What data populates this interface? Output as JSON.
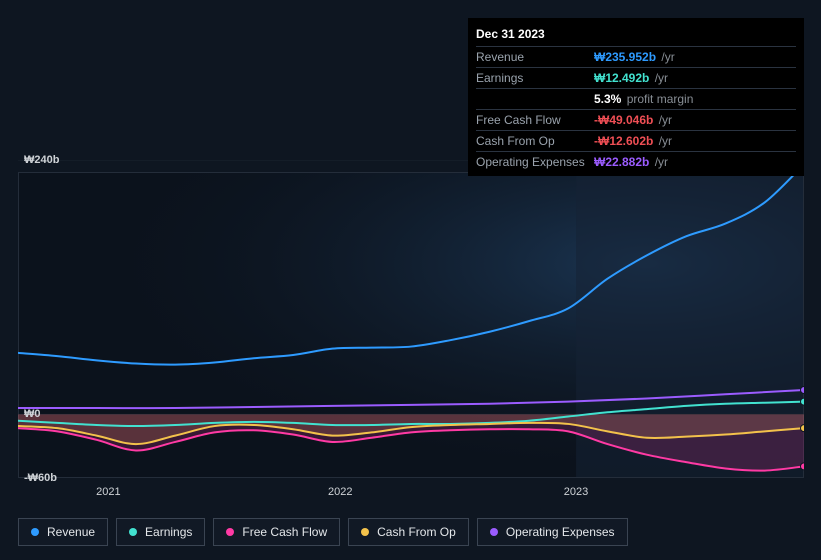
{
  "colors": {
    "revenue": "#2e9bff",
    "earnings": "#42e2d0",
    "fcf": "#ff3aa4",
    "cfo": "#f3c24b",
    "opex": "#9b5cff",
    "background": "#0e1621",
    "tooltip_bg": "#000000",
    "grid": "#1b2430",
    "highlight_band": "#152235",
    "neg_value": "#f04f55"
  },
  "tooltip": {
    "title": "Dec 31 2023",
    "rows": [
      {
        "label": "Revenue",
        "value": "₩235.952b",
        "suffix": "/yr",
        "color_key": "revenue"
      },
      {
        "label": "Earnings",
        "value": "₩12.492b",
        "suffix": "/yr",
        "color_key": "earnings"
      },
      {
        "label": "",
        "value": "5.3%",
        "suffix": "profit margin",
        "color_key": "white"
      },
      {
        "label": "Free Cash Flow",
        "value": "-₩49.046b",
        "suffix": "/yr",
        "color_key": "neg"
      },
      {
        "label": "Cash From Op",
        "value": "-₩12.602b",
        "suffix": "/yr",
        "color_key": "neg"
      },
      {
        "label": "Operating Expenses",
        "value": "₩22.882b",
        "suffix": "/yr",
        "color_key": "opex"
      }
    ]
  },
  "chart": {
    "type": "line",
    "y_min": -60,
    "y_max": 240,
    "y_ticks": [
      {
        "v": 240,
        "label": "₩240b"
      },
      {
        "v": 0,
        "label": "₩0"
      },
      {
        "v": -60,
        "label": "-₩60b"
      }
    ],
    "x_min": 0,
    "x_max": 100,
    "x_ticks": [
      {
        "v": 11.5,
        "label": "2021"
      },
      {
        "v": 41.0,
        "label": "2022"
      },
      {
        "v": 71.0,
        "label": "2023"
      }
    ],
    "highlight_x": 71.0,
    "series": [
      {
        "name": "Revenue",
        "color_key": "revenue",
        "fill": false,
        "width": 2,
        "points": [
          {
            "x": 0,
            "y": 58
          },
          {
            "x": 5,
            "y": 55
          },
          {
            "x": 10,
            "y": 51
          },
          {
            "x": 15,
            "y": 48
          },
          {
            "x": 20,
            "y": 47
          },
          {
            "x": 25,
            "y": 49
          },
          {
            "x": 30,
            "y": 53
          },
          {
            "x": 35,
            "y": 56
          },
          {
            "x": 40,
            "y": 62
          },
          {
            "x": 45,
            "y": 63
          },
          {
            "x": 50,
            "y": 64
          },
          {
            "x": 55,
            "y": 70
          },
          {
            "x": 60,
            "y": 78
          },
          {
            "x": 65,
            "y": 88
          },
          {
            "x": 70,
            "y": 100
          },
          {
            "x": 75,
            "y": 128
          },
          {
            "x": 80,
            "y": 150
          },
          {
            "x": 85,
            "y": 168
          },
          {
            "x": 90,
            "y": 180
          },
          {
            "x": 95,
            "y": 200
          },
          {
            "x": 100,
            "y": 236
          }
        ]
      },
      {
        "name": "Operating Expenses",
        "color_key": "opex",
        "fill": false,
        "width": 2,
        "points": [
          {
            "x": 0,
            "y": 6
          },
          {
            "x": 10,
            "y": 6
          },
          {
            "x": 20,
            "y": 6
          },
          {
            "x": 30,
            "y": 7
          },
          {
            "x": 40,
            "y": 8
          },
          {
            "x": 50,
            "y": 9
          },
          {
            "x": 60,
            "y": 10
          },
          {
            "x": 70,
            "y": 12
          },
          {
            "x": 80,
            "y": 15
          },
          {
            "x": 90,
            "y": 19
          },
          {
            "x": 100,
            "y": 23
          }
        ]
      },
      {
        "name": "Earnings",
        "color_key": "earnings",
        "fill": false,
        "width": 2,
        "points": [
          {
            "x": 0,
            "y": -6
          },
          {
            "x": 5,
            "y": -8
          },
          {
            "x": 10,
            "y": -10
          },
          {
            "x": 15,
            "y": -11
          },
          {
            "x": 20,
            "y": -10
          },
          {
            "x": 25,
            "y": -8
          },
          {
            "x": 30,
            "y": -7
          },
          {
            "x": 35,
            "y": -8
          },
          {
            "x": 40,
            "y": -10
          },
          {
            "x": 45,
            "y": -10
          },
          {
            "x": 50,
            "y": -9
          },
          {
            "x": 55,
            "y": -9
          },
          {
            "x": 60,
            "y": -8
          },
          {
            "x": 65,
            "y": -6
          },
          {
            "x": 70,
            "y": -2
          },
          {
            "x": 75,
            "y": 2
          },
          {
            "x": 80,
            "y": 5
          },
          {
            "x": 85,
            "y": 8
          },
          {
            "x": 90,
            "y": 10
          },
          {
            "x": 95,
            "y": 11
          },
          {
            "x": 100,
            "y": 12
          }
        ]
      },
      {
        "name": "Cash From Op",
        "color_key": "cfo",
        "fill": true,
        "width": 2,
        "points": [
          {
            "x": 0,
            "y": -11
          },
          {
            "x": 5,
            "y": -13
          },
          {
            "x": 10,
            "y": -20
          },
          {
            "x": 15,
            "y": -28
          },
          {
            "x": 20,
            "y": -20
          },
          {
            "x": 25,
            "y": -11
          },
          {
            "x": 30,
            "y": -10
          },
          {
            "x": 35,
            "y": -14
          },
          {
            "x": 40,
            "y": -20
          },
          {
            "x": 45,
            "y": -17
          },
          {
            "x": 50,
            "y": -12
          },
          {
            "x": 55,
            "y": -10
          },
          {
            "x": 60,
            "y": -9
          },
          {
            "x": 65,
            "y": -8
          },
          {
            "x": 70,
            "y": -9
          },
          {
            "x": 75,
            "y": -16
          },
          {
            "x": 80,
            "y": -22
          },
          {
            "x": 85,
            "y": -21
          },
          {
            "x": 90,
            "y": -19
          },
          {
            "x": 95,
            "y": -16
          },
          {
            "x": 100,
            "y": -13
          }
        ]
      },
      {
        "name": "Free Cash Flow",
        "color_key": "fcf",
        "fill": true,
        "width": 2,
        "points": [
          {
            "x": 0,
            "y": -13
          },
          {
            "x": 5,
            "y": -16
          },
          {
            "x": 10,
            "y": -24
          },
          {
            "x": 15,
            "y": -34
          },
          {
            "x": 20,
            "y": -26
          },
          {
            "x": 25,
            "y": -17
          },
          {
            "x": 30,
            "y": -15
          },
          {
            "x": 35,
            "y": -19
          },
          {
            "x": 40,
            "y": -26
          },
          {
            "x": 45,
            "y": -22
          },
          {
            "x": 50,
            "y": -17
          },
          {
            "x": 55,
            "y": -15
          },
          {
            "x": 60,
            "y": -14
          },
          {
            "x": 65,
            "y": -14
          },
          {
            "x": 70,
            "y": -16
          },
          {
            "x": 75,
            "y": -28
          },
          {
            "x": 80,
            "y": -38
          },
          {
            "x": 85,
            "y": -45
          },
          {
            "x": 90,
            "y": -51
          },
          {
            "x": 95,
            "y": -53
          },
          {
            "x": 100,
            "y": -49
          }
        ]
      }
    ],
    "end_markers": true
  },
  "legend": [
    {
      "label": "Revenue",
      "color_key": "revenue"
    },
    {
      "label": "Earnings",
      "color_key": "earnings"
    },
    {
      "label": "Free Cash Flow",
      "color_key": "fcf"
    },
    {
      "label": "Cash From Op",
      "color_key": "cfo"
    },
    {
      "label": "Operating Expenses",
      "color_key": "opex"
    }
  ]
}
